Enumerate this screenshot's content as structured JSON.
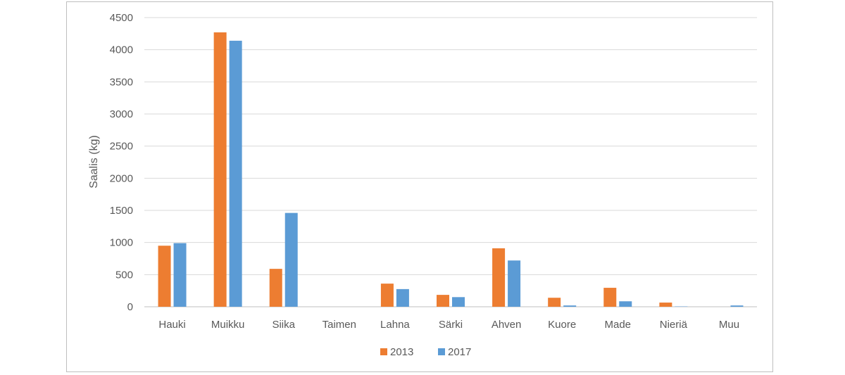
{
  "chart_data": {
    "type": "bar",
    "title": "",
    "xlabel": "",
    "ylabel": "Saalis (kg)",
    "ylim": [
      0,
      4500
    ],
    "ytick_step": 500,
    "grid": true,
    "legend_position": "bottom",
    "categories": [
      "Hauki",
      "Muikku",
      "Siika",
      "Taimen",
      "Lahna",
      "Särki",
      "Ahven",
      "Kuore",
      "Made",
      "Nieriä",
      "Muu"
    ],
    "series": [
      {
        "name": "2013",
        "color": "#ED7D31",
        "values": [
          950,
          4270,
          590,
          0,
          360,
          185,
          910,
          140,
          295,
          65,
          0
        ]
      },
      {
        "name": "2017",
        "color": "#5B9BD5",
        "values": [
          990,
          4140,
          1460,
          0,
          275,
          150,
          720,
          20,
          85,
          5,
          20
        ]
      }
    ]
  }
}
